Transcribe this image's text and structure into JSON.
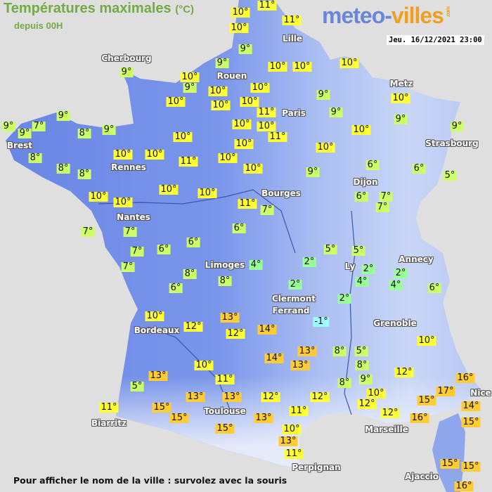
{
  "header": {
    "title": "Températures maximales",
    "unit": "(°C)",
    "subtitle": "depuis 00H"
  },
  "logo": {
    "part1": "meteo-",
    "part2": "villes",
    "suffix": ".com"
  },
  "timestamp": "Jeu. 16/12/2021 23:00",
  "footer": "Pour afficher le nom de la ville : survolez avec la souris",
  "colors": {
    "sea": "#e0dfdf",
    "land": "#6f8ce6",
    "cold": "#99ffff",
    "cool": "#99ff99",
    "mild": "#ccff66",
    "warm": "#ffff33",
    "hot": "#ffcc33"
  },
  "cities": [
    "Cherbourg",
    "Lille",
    "Rouen",
    "Paris",
    "Metz",
    "Strasbourg",
    "Brest",
    "Rennes",
    "Nantes",
    "Dijon",
    "Bourges",
    "Limoges",
    "Annecy",
    "Ly",
    "Clermont",
    "Ferrand",
    "Grenoble",
    "Bordeaux",
    "Toulouse",
    "Biarritz",
    "Marseille",
    "Nice",
    "Perpignan",
    "Ajaccio"
  ],
  "temperatures": [
    "10°",
    "11°",
    "10°",
    "11°",
    "9°",
    "9°",
    "10°",
    "9°",
    "10°",
    "10°",
    "10°",
    "10°",
    "10°",
    "10°",
    "10°",
    "10°",
    "11°",
    "10°",
    "10°",
    "11°",
    "9°",
    "9°",
    "10°",
    "10°",
    "9°",
    "9°",
    "10°",
    "10°",
    "10°",
    "10°",
    "9°",
    "6°",
    "6°",
    "5°",
    "6°",
    "7°",
    "7°",
    "11°",
    "7°",
    "9°",
    "9°",
    "9°",
    "7°",
    "9°",
    "8°",
    "9°",
    "10°",
    "8°",
    "10°",
    "10°",
    "11°",
    "8°",
    "8°",
    "10°",
    "10°",
    "10°",
    "10°",
    "7°",
    "7°",
    "6°",
    "6°",
    "6°",
    "7°",
    "7°",
    "8°",
    "6°",
    "8°",
    "4°",
    "10°",
    "12°",
    "13°",
    "12°",
    "14°",
    "10°",
    "13°",
    "5°",
    "11°",
    "13°",
    "13°",
    "15°",
    "15°",
    "11°",
    "15°",
    "5°",
    "5°",
    "2°",
    "2°",
    "4°",
    "2°",
    "4°",
    "6°",
    "2°",
    "2°",
    "-1°",
    "10°",
    "13°",
    "8°",
    "5°",
    "14°",
    "13°",
    "8°",
    "12°",
    "9°",
    "8°",
    "16°",
    "17°",
    "10°",
    "12°",
    "12°",
    "15°",
    "12°",
    "14°",
    "12°",
    "11°",
    "16°",
    "15°",
    "13°",
    "10°",
    "13°",
    "11°",
    "15°",
    "15°",
    "16°"
  ]
}
